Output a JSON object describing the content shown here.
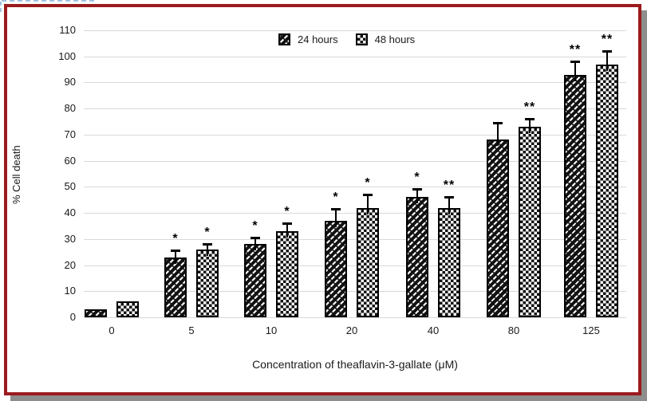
{
  "figure": {
    "border_color": "#9b1b1e",
    "shadow_color": "#8d8d8d",
    "background_color": "#ffffff",
    "gridline_color": "#d9d9d9"
  },
  "chart_data": {
    "type": "bar",
    "title": "",
    "xlabel": "Concentration of theaflavin-3-gallate (μM)",
    "ylabel": "% Cell death",
    "categories": [
      "0",
      "5",
      "10",
      "20",
      "40",
      "80",
      "125"
    ],
    "y_ticks": [
      0,
      10,
      20,
      30,
      40,
      50,
      60,
      70,
      80,
      90,
      100,
      110
    ],
    "ylim": [
      0,
      110
    ],
    "grid": true,
    "legend_position": "top-center",
    "series": [
      {
        "name": "24 hours",
        "pattern": "dark-diagonal-hatch",
        "values": [
          3,
          23,
          28,
          37,
          46,
          68,
          93
        ],
        "errors": [
          0,
          3,
          3,
          5,
          3.5,
          7,
          5.5
        ],
        "significance": [
          "",
          "*",
          "*",
          "*",
          "*",
          "",
          "**"
        ]
      },
      {
        "name": "48 hours",
        "pattern": "checkerboard",
        "values": [
          6,
          26,
          33,
          42,
          42,
          73,
          97
        ],
        "errors": [
          0,
          2.5,
          3.5,
          5.5,
          4.5,
          3.5,
          5.5
        ],
        "significance": [
          "",
          "*",
          "*",
          "*",
          "**",
          "**",
          "**"
        ]
      }
    ]
  }
}
